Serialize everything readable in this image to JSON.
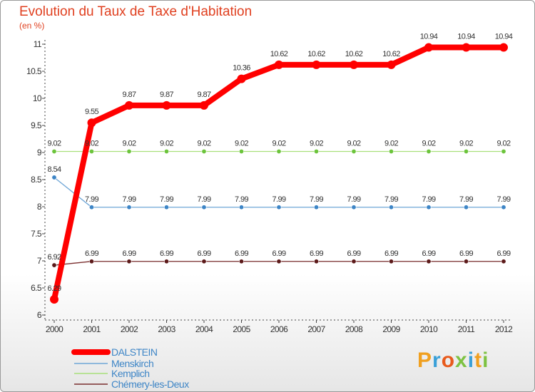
{
  "chart_data": {
    "type": "line",
    "title": "Evolution du Taux de Taxe d'Habitation",
    "unit_label": "(en %)",
    "x": [
      "2000",
      "2001",
      "2002",
      "2003",
      "2004",
      "2005",
      "2006",
      "2007",
      "2008",
      "2009",
      "2010",
      "2011",
      "2012"
    ],
    "ylim": [
      6,
      11
    ],
    "yticks": [
      6,
      6.5,
      7,
      7.5,
      8,
      8.5,
      9,
      9.5,
      10,
      10.5,
      11
    ],
    "ytick_labels": [
      "6",
      "6.5",
      "7",
      "7.5",
      "8",
      "8.5",
      "9",
      "9.5",
      "10",
      "10.5",
      "11"
    ],
    "series": [
      {
        "name": "DALSTEIN",
        "color": "#ff0000",
        "marker_color": "#ff0000",
        "width": 8,
        "marker": 6,
        "values": [
          6.29,
          9.55,
          9.87,
          9.87,
          9.87,
          10.36,
          10.62,
          10.62,
          10.62,
          10.62,
          10.94,
          10.94,
          10.94
        ],
        "labels": [
          "6.29",
          "9.55",
          "9.87",
          "9.87",
          "9.87",
          "10.36",
          "10.62",
          "10.62",
          "10.62",
          "10.62",
          "10.94",
          "10.94",
          "10.94"
        ]
      },
      {
        "name": "Menskirch",
        "color": "#6fa6d6",
        "marker_color": "#3d85c6",
        "width": 1.3,
        "marker": 3.2,
        "values": [
          8.54,
          7.99,
          7.99,
          7.99,
          7.99,
          7.99,
          7.99,
          7.99,
          7.99,
          7.99,
          7.99,
          7.99,
          7.99
        ],
        "labels": [
          "8.54",
          "7.99",
          "7.99",
          "7.99",
          "7.99",
          "7.99",
          "7.99",
          "7.99",
          "7.99",
          "7.99",
          "7.99",
          "7.99",
          "7.99"
        ]
      },
      {
        "name": "Kemplich",
        "color": "#a8e07a",
        "marker_color": "#6cc43c",
        "width": 1.3,
        "marker": 3.2,
        "values": [
          9.02,
          9.02,
          9.02,
          9.02,
          9.02,
          9.02,
          9.02,
          9.02,
          9.02,
          9.02,
          9.02,
          9.02,
          9.02
        ],
        "labels": [
          "9.02",
          "9.02",
          "9.02",
          "9.02",
          "9.02",
          "9.02",
          "9.02",
          "9.02",
          "9.02",
          "9.02",
          "9.02",
          "9.02",
          "9.02"
        ]
      },
      {
        "name": "Chémery-les-Deux",
        "color": "#7a2e2e",
        "marker_color": "#5c1a1a",
        "width": 1.3,
        "marker": 3.2,
        "values": [
          6.92,
          6.99,
          6.99,
          6.99,
          6.99,
          6.99,
          6.99,
          6.99,
          6.99,
          6.99,
          6.99,
          6.99,
          6.99
        ],
        "labels": [
          "6.92",
          "6.99",
          "6.99",
          "6.99",
          "6.99",
          "6.99",
          "6.99",
          "6.99",
          "6.99",
          "6.99",
          "6.99",
          "6.99",
          "6.99"
        ]
      }
    ],
    "legend_position": "bottom-left",
    "grid": false
  },
  "logo": {
    "letters": [
      "P",
      "r",
      "o",
      "x",
      "i",
      "t",
      "i"
    ],
    "colors": [
      "#f0a020",
      "#3aa0d8",
      "#e85a1c",
      "#7dc242",
      "#3aa0d8",
      "#f0a020",
      "#7dc242"
    ]
  }
}
